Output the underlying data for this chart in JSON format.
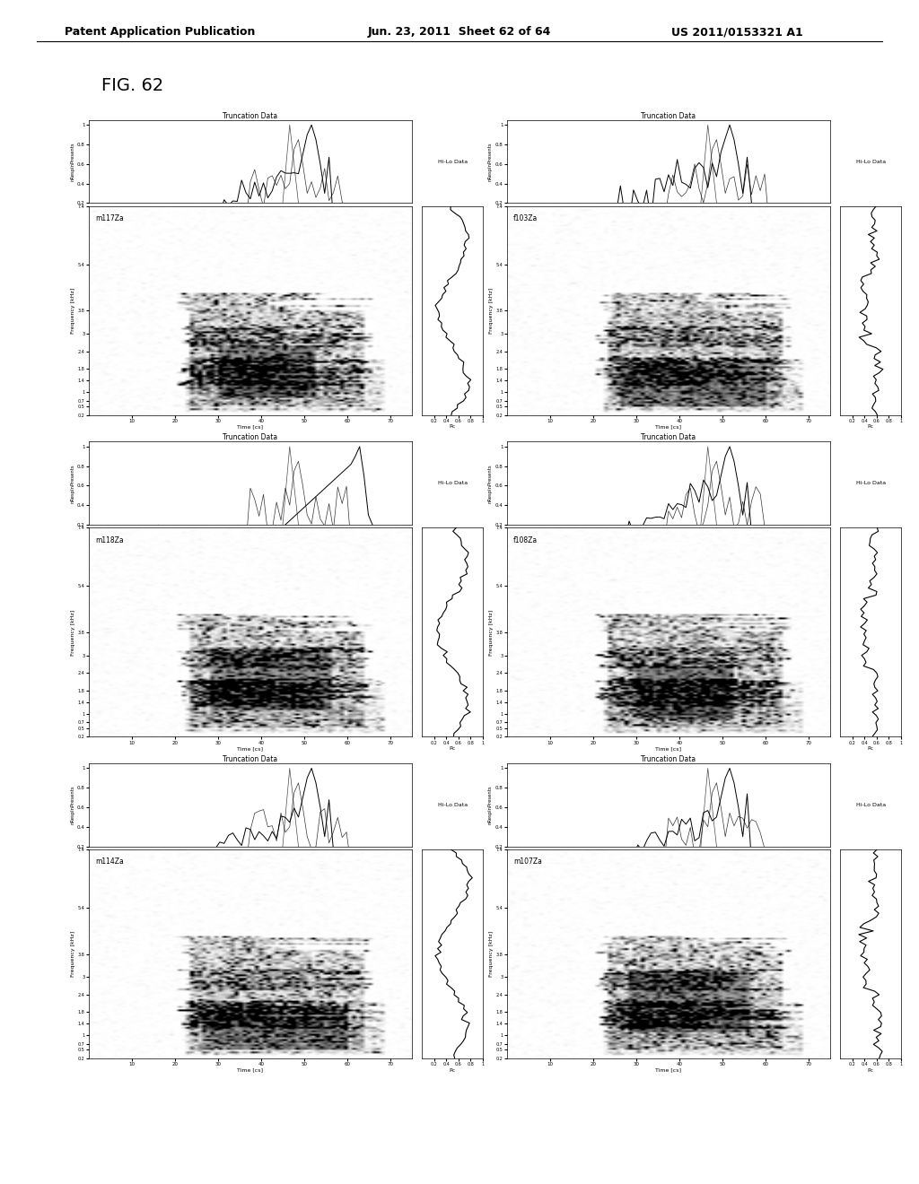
{
  "header_left": "Patent Application Publication",
  "header_mid": "Jun. 23, 2011  Sheet 62 of 64",
  "header_right": "US 2011/0153321 A1",
  "fig_label": "FIG. 62",
  "panels": [
    {
      "label": "m117Za",
      "trunc_title": "Truncation Data",
      "hilo_title": "Hi-Lo Data"
    },
    {
      "label": "f103Za",
      "trunc_title": "Truncation Data",
      "hilo_title": "Hi-Lo Data"
    },
    {
      "label": "m118Za",
      "trunc_title": "Truncation Data",
      "hilo_title": "Hi-Lo Data"
    },
    {
      "label": "f108Za",
      "trunc_title": "Truncation Data",
      "hilo_title": "Hi-Lo Data"
    },
    {
      "label": "m114Za",
      "trunc_title": "Truncation Data",
      "hilo_title": "Hi-Lo Data"
    },
    {
      "label": "m107Za",
      "trunc_title": "Truncation Data",
      "hilo_title": "Hi-Lo Data"
    }
  ],
  "spectrogram_ylabel": "Frequency [kHz]",
  "spectrogram_xlabel": "Time [cs]",
  "trunc_ylabel": "nRespInPresents",
  "hilo_xlabel": "Pc",
  "background_color": "#ffffff",
  "text_color": "#000000",
  "fig_label_fontsize": 14,
  "header_fontsize": 9
}
